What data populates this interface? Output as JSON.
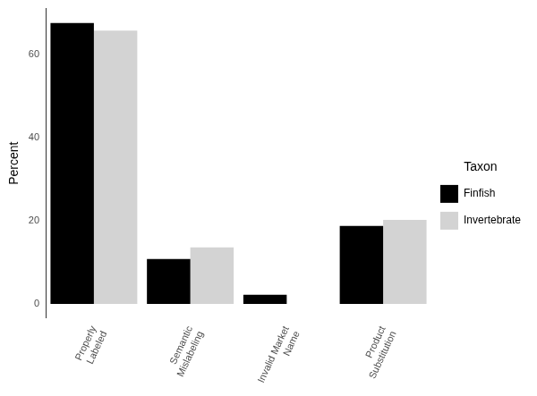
{
  "chart_data": {
    "type": "bar",
    "y_label": "Percent",
    "legend_title": "Taxon",
    "legend": "right",
    "grid": false,
    "categories": [
      "Properly\nLabeled",
      "Semantic\nMislabeling",
      "Invalid Market\nName",
      "Product\nSubstitution"
    ],
    "series": [
      {
        "name": "Finfish",
        "color": "#000000",
        "values": [
          67.6,
          10.8,
          2.2,
          18.8
        ]
      },
      {
        "name": "Invertebrate",
        "color": "#d3d3d3",
        "values": [
          65.8,
          13.6,
          0,
          20.2
        ]
      }
    ],
    "ylim": [
      -3.4,
      71.1
    ],
    "yticks": [
      0,
      20,
      40,
      60
    ]
  }
}
